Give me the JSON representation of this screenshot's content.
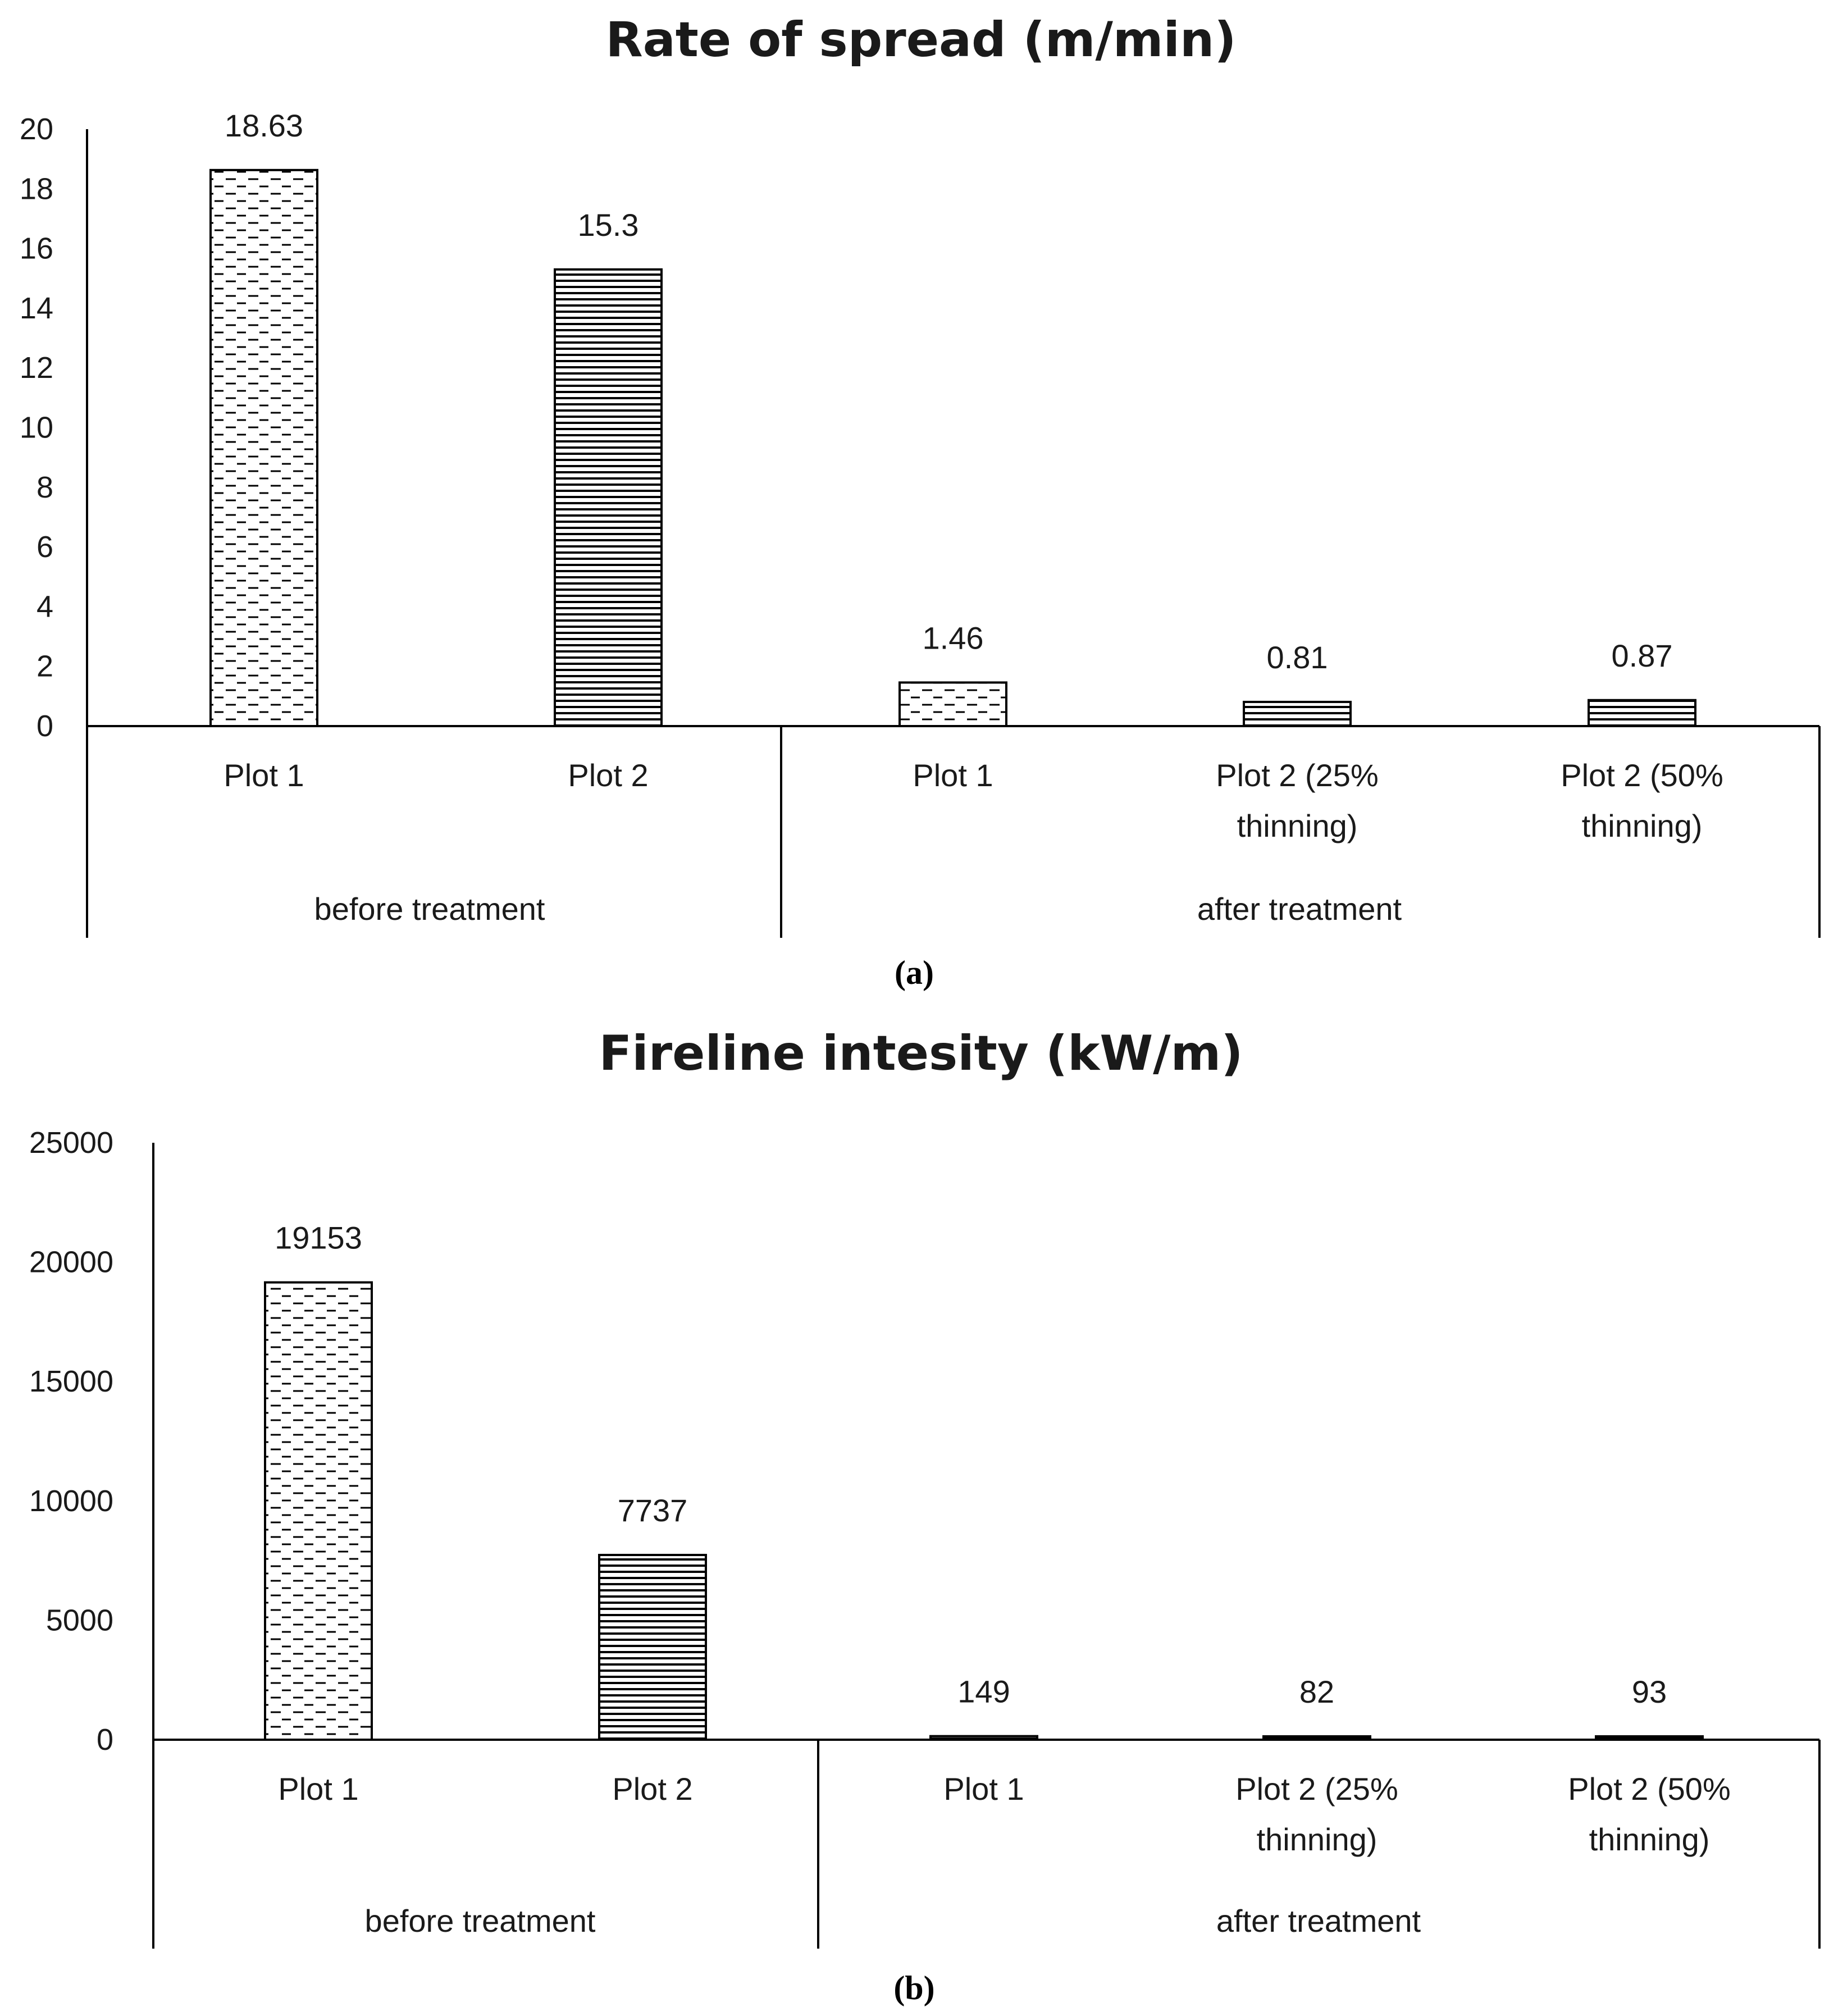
{
  "chart_data": [
    {
      "type": "bar",
      "title": "Rate of spread (m/min)",
      "caption": "(a)",
      "ylim": [
        0,
        20
      ],
      "yticks": [
        0,
        2,
        4,
        6,
        8,
        10,
        12,
        14,
        16,
        18,
        20
      ],
      "categories": [
        "Plot 1",
        "Plot 2",
        "Plot 1",
        "Plot 2 (25% thinning)",
        "Plot 2 (50% thinning)"
      ],
      "category_lines": [
        [
          "Plot 1"
        ],
        [
          "Plot 2"
        ],
        [
          "Plot 1"
        ],
        [
          "Plot 2 (25%",
          "thinning)"
        ],
        [
          "Plot 2 (50%",
          "thinning)"
        ]
      ],
      "groups": [
        {
          "label": "before treatment",
          "count": 2
        },
        {
          "label": "after treatment",
          "count": 3
        }
      ],
      "values": [
        18.63,
        15.3,
        1.46,
        0.81,
        0.87
      ],
      "data_labels": [
        "18.63",
        "15.3",
        "1.46",
        "0.81",
        "0.87"
      ],
      "patterns": [
        "dashed",
        "horizontal",
        "dashed",
        "horizontal",
        "horizontal"
      ],
      "grid": false
    },
    {
      "type": "bar",
      "title": "Fireline intesity (kW/m)",
      "caption": "(b)",
      "ylim": [
        0,
        25000
      ],
      "yticks": [
        0,
        5000,
        10000,
        15000,
        20000,
        25000
      ],
      "categories": [
        "Plot 1",
        "Plot 2",
        "Plot 1",
        "Plot 2 (25% thinning)",
        "Plot 2 (50% thinning)"
      ],
      "category_lines": [
        [
          "Plot 1"
        ],
        [
          "Plot 2"
        ],
        [
          "Plot 1"
        ],
        [
          "Plot 2 (25%",
          "thinning)"
        ],
        [
          "Plot 2 (50%",
          "thinning)"
        ]
      ],
      "groups": [
        {
          "label": "before treatment",
          "count": 2
        },
        {
          "label": "after treatment",
          "count": 3
        }
      ],
      "values": [
        19153,
        7737,
        149,
        82,
        93
      ],
      "data_labels": [
        "19153",
        "7737",
        "149",
        "82",
        "93"
      ],
      "patterns": [
        "dashed",
        "horizontal",
        "horizontal",
        "horizontal",
        "horizontal"
      ],
      "grid": false
    }
  ]
}
